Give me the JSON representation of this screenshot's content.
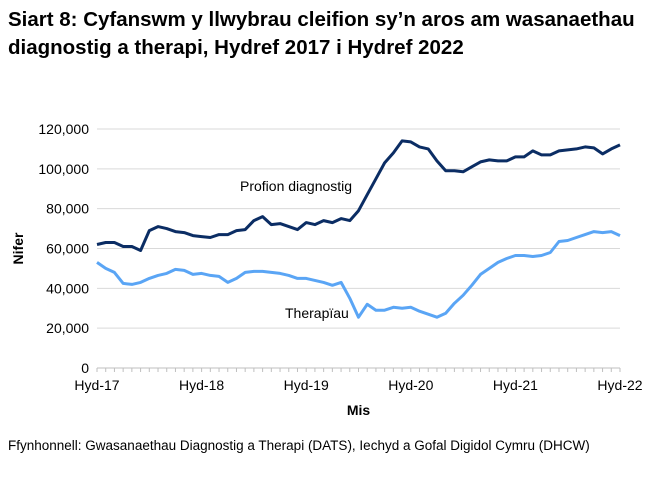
{
  "chart_data": {
    "type": "line",
    "title": "Siart 8: Cyfanswm y llwybrau cleifion sy’n aros am wasanaethau diagnostig a therapi, Hydref 2017 i Hydref 2022",
    "xlabel": "Mis",
    "ylabel": "Nifer",
    "ylim": [
      0,
      120000
    ],
    "yticks": [
      0,
      20000,
      40000,
      60000,
      80000,
      100000,
      120000
    ],
    "ytick_labels": [
      "0",
      "20,000",
      "40,000",
      "60,000",
      "80,000",
      "100,000",
      "120,000"
    ],
    "xtick_labels": [
      "Hyd-17",
      "Hyd-18",
      "Hyd-19",
      "Hyd-20",
      "Hyd-21",
      "Hyd-22"
    ],
    "x_start": "2017-10",
    "x_end": "2022-10",
    "grid": true,
    "series": [
      {
        "name": "Profion diagnostig",
        "color": "#0b2d64",
        "values": [
          62000,
          63000,
          63000,
          61000,
          61000,
          59000,
          69000,
          71000,
          70000,
          68500,
          68000,
          66500,
          66000,
          65500,
          67000,
          67000,
          69000,
          69500,
          74000,
          76000,
          72000,
          72500,
          71000,
          69500,
          73000,
          72000,
          74000,
          73000,
          75000,
          74000,
          79000,
          87000,
          95000,
          103000,
          108000,
          114000,
          113500,
          111000,
          110000,
          104000,
          99000,
          99000,
          98500,
          101000,
          103500,
          104500,
          104000,
          104000,
          106000,
          106000,
          109000,
          107000,
          107000,
          109000,
          109500,
          110000,
          111000,
          110500,
          107500,
          110000,
          112000
        ]
      },
      {
        "name": "Therapïau",
        "color": "#5aa5f5",
        "values": [
          53000,
          50000,
          48000,
          42500,
          42000,
          43000,
          45000,
          46500,
          47500,
          49500,
          49000,
          47000,
          47500,
          46500,
          46000,
          43000,
          45000,
          48000,
          48500,
          48500,
          48000,
          47500,
          46500,
          45000,
          45000,
          44000,
          43000,
          41500,
          43000,
          35000,
          25500,
          32000,
          29000,
          29000,
          30500,
          30000,
          30500,
          28500,
          27000,
          25500,
          27500,
          32500,
          36500,
          41500,
          47000,
          50000,
          53000,
          55000,
          56500,
          56500,
          56000,
          56500,
          58000,
          63500,
          64000,
          65500,
          67000,
          68500,
          68000,
          68500,
          66500
        ]
      }
    ]
  },
  "source": "Ffynhonnell: Gwasanaethau Diagnostig a Therapi (DATS), Iechyd a Gofal Digidol Cymru (DHCW)"
}
